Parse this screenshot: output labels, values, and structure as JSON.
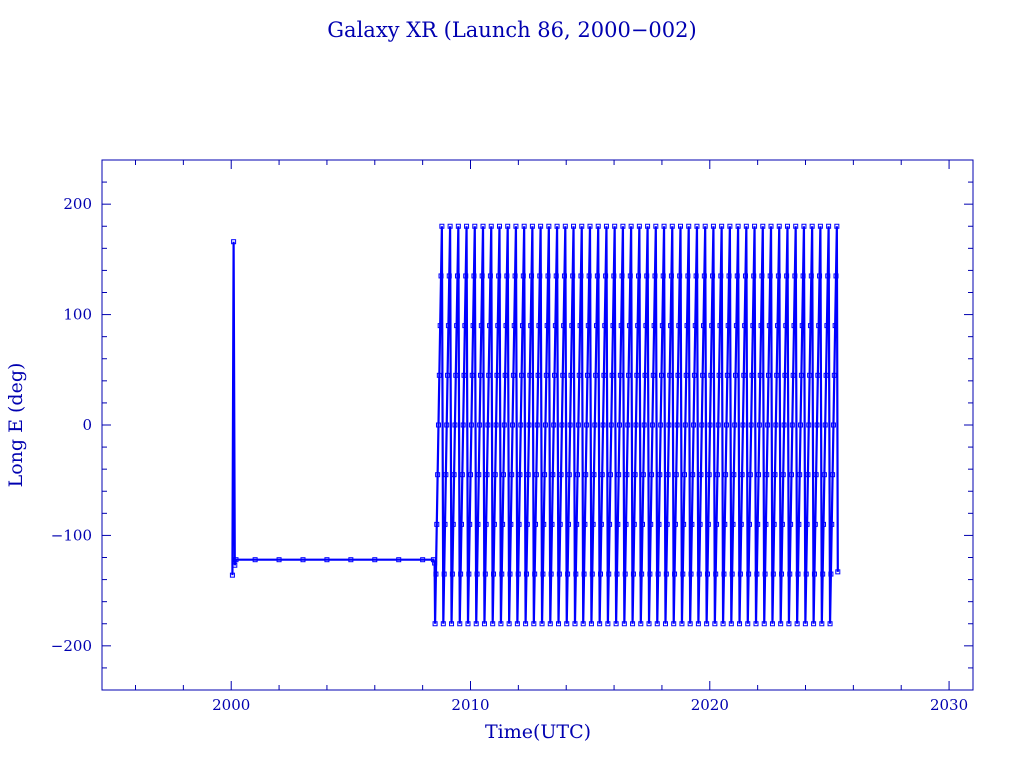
{
  "chart_data": {
    "type": "line",
    "title": "Galaxy XR (Launch 86, 2000−002)",
    "xlabel": "Time(UTC)",
    "ylabel": "Long E (deg)",
    "xlim": [
      1994.6,
      2031.0
    ],
    "ylim": [
      -240,
      240
    ],
    "x_ticks": [
      2000,
      2010,
      2020,
      2030
    ],
    "x_tick_labels": [
      "2000",
      "2010",
      "2020",
      "2030"
    ],
    "y_ticks": [
      200,
      100,
      0,
      -100,
      -200
    ],
    "y_tick_labels": [
      "200",
      "100",
      "0",
      "−100",
      "−200"
    ],
    "grid": false,
    "marker": "open-square",
    "colors": {
      "axis": "#0000b0",
      "series": "#0000ff"
    },
    "series": [
      {
        "x": [
          2000.05,
          2000.1,
          2000.15,
          2000.2,
          2001,
          2002,
          2003,
          2004,
          2005,
          2006,
          2007,
          2008,
          2008.45,
          2008.5,
          2008.85,
          2009.5,
          2010.2,
          2010.9,
          2011.6,
          2012.3,
          2013.0,
          2013.7,
          2014.4,
          2015.1,
          2015.8,
          2016.5,
          2017.2,
          2017.9,
          2018.6,
          2019.3,
          2020.0,
          2020.7,
          2021.4,
          2022.1,
          2022.8,
          2023.5,
          2024.2,
          2024.9,
          2025.3
        ],
        "y": [
          -136,
          166,
          -127,
          -122,
          -122,
          -122,
          -122,
          -122,
          -122,
          -122,
          -122,
          -122,
          -122,
          -125,
          -180,
          -180,
          -180,
          -180,
          -180,
          -180,
          -180,
          -180,
          -180,
          -180,
          -180,
          -180,
          -180,
          -180,
          -180,
          -180,
          -180,
          -180,
          -180,
          -180,
          -180,
          -180,
          -180,
          -180,
          -133
        ],
        "drift": {
          "start": 2008.5,
          "end": 2025.35,
          "cycles": 49,
          "range": [
            -180,
            180
          ],
          "end_value": -133
        }
      }
    ]
  }
}
